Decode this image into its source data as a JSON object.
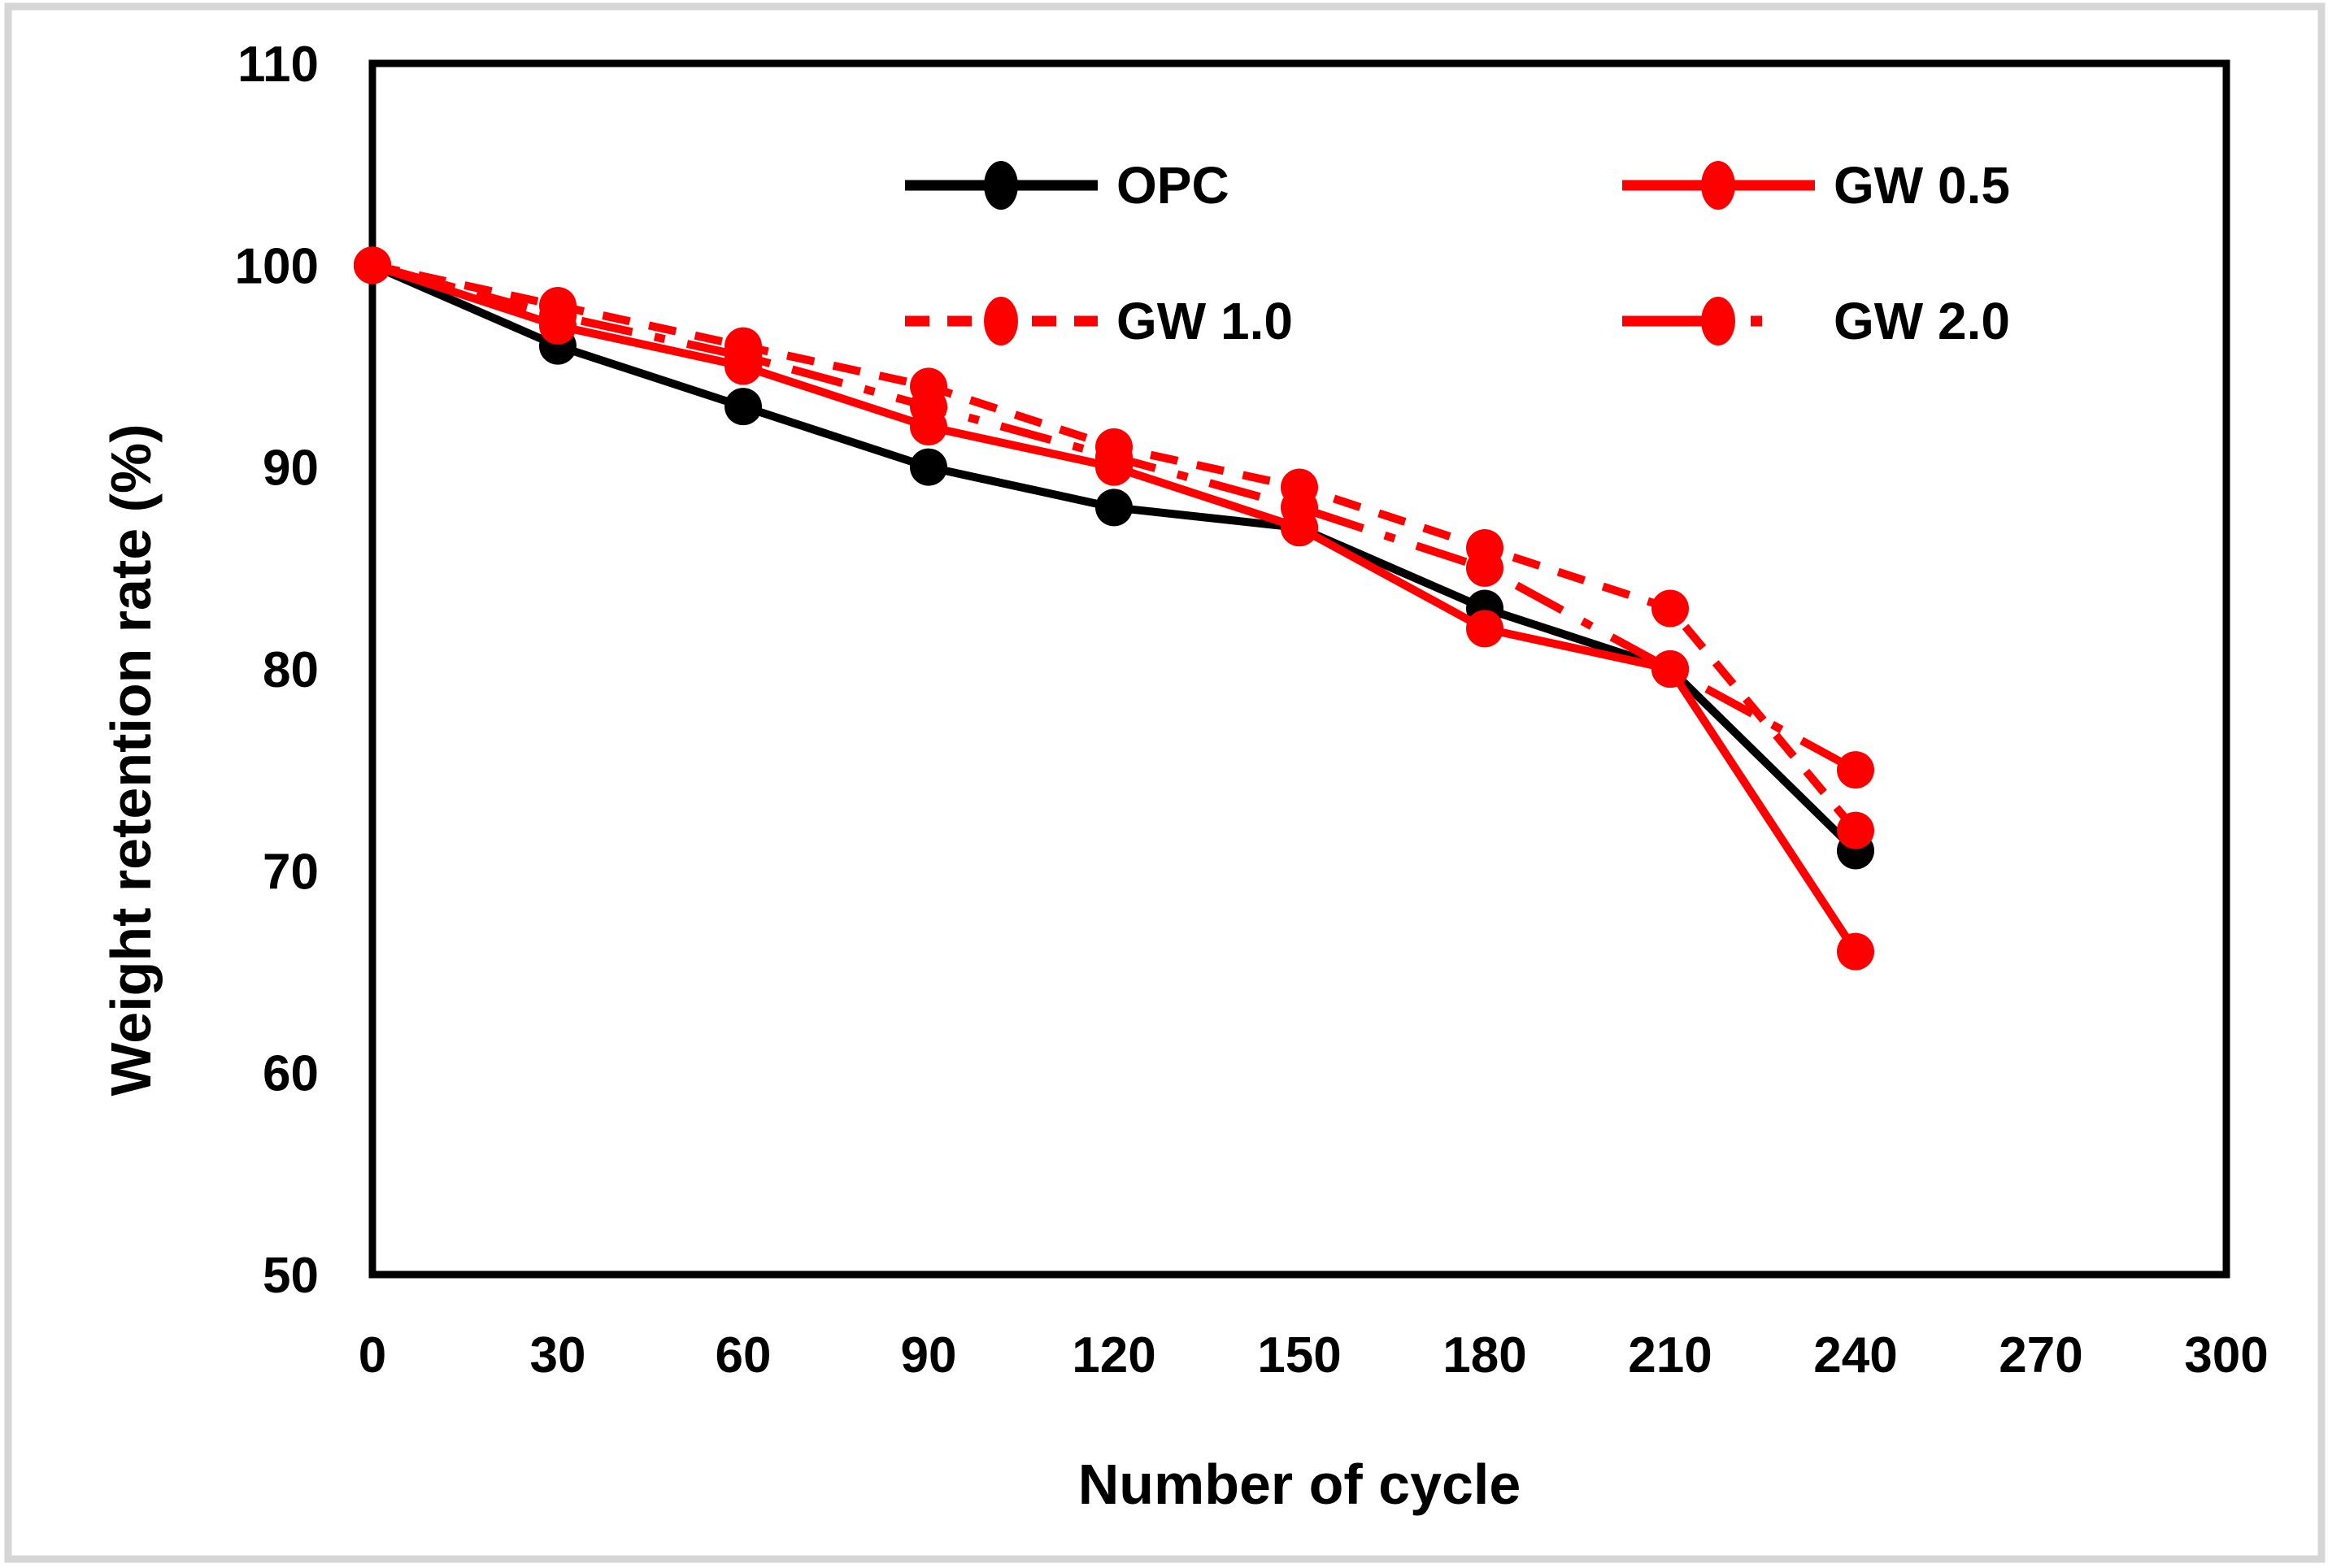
{
  "figure": {
    "background": "#ffffff",
    "border_color": "#d6d6d6",
    "series_red": "#ff0000",
    "series_black": "#000000"
  },
  "chart_data": {
    "type": "line",
    "title": "",
    "xlabel": "Number of cycle",
    "ylabel": "Weight retention rate (%)",
    "xlim": [
      0,
      300
    ],
    "ylim": [
      50,
      110
    ],
    "xticks": [
      0,
      30,
      60,
      90,
      120,
      150,
      180,
      210,
      240,
      270,
      300
    ],
    "yticks": [
      110,
      100,
      90,
      80,
      70,
      60,
      50
    ],
    "grid": false,
    "legend_position": "top-inside",
    "legend_columns": 2,
    "x": [
      0,
      30,
      60,
      90,
      120,
      150,
      180,
      210,
      240
    ],
    "series": [
      {
        "name": "OPC",
        "color": "#000000",
        "line_style": "solid",
        "marker": "circle",
        "values": [
          100,
          96,
          93,
          90,
          88,
          87,
          83,
          80,
          71
        ]
      },
      {
        "name": "GW 0.5",
        "color": "#ff0000",
        "line_style": "solid",
        "marker": "circle",
        "values": [
          100,
          97,
          95,
          92,
          90,
          87,
          82,
          80,
          66
        ]
      },
      {
        "name": "GW 1.0",
        "color": "#ff0000",
        "line_style": "dashed",
        "marker": "circle",
        "values": [
          100,
          98,
          96,
          94,
          91,
          89,
          86,
          83,
          72
        ]
      },
      {
        "name": "GW 2.0",
        "color": "#ff0000",
        "line_style": "dash-dot",
        "marker": "circle",
        "values": [
          100,
          97.5,
          95.5,
          93,
          90.5,
          88,
          85,
          80,
          75
        ]
      }
    ]
  }
}
